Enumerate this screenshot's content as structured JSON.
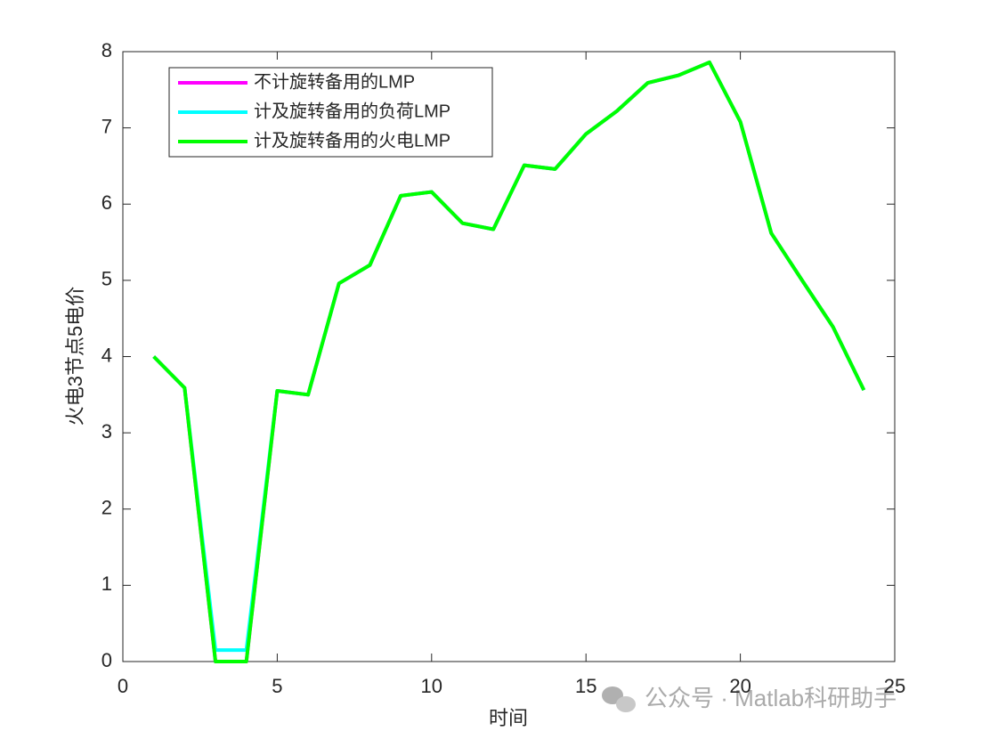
{
  "chart_data": {
    "type": "line",
    "xlabel": "时间",
    "ylabel": "火电3节点5电价",
    "x": [
      1,
      2,
      3,
      4,
      5,
      6,
      7,
      8,
      9,
      10,
      11,
      12,
      13,
      14,
      15,
      16,
      17,
      18,
      19,
      20,
      21,
      22,
      23,
      24
    ],
    "series": [
      {
        "name": "不计旋转备用的LMP",
        "color": "#ff00ff",
        "values": [
          4.0,
          3.59,
          0,
          0,
          3.55,
          3.5,
          4.96,
          5.2,
          6.11,
          6.16,
          5.75,
          5.67,
          6.51,
          6.46,
          6.92,
          7.22,
          7.59,
          7.69,
          7.86,
          7.08,
          5.62,
          5.0,
          4.39,
          3.56
        ]
      },
      {
        "name": "计及旋转备用的负荷LMP",
        "color": "#00ffff",
        "values": [
          4.0,
          3.59,
          0.15,
          0.15,
          3.55,
          3.5,
          4.96,
          5.2,
          6.11,
          6.16,
          5.75,
          5.67,
          6.51,
          6.46,
          6.92,
          7.22,
          7.59,
          7.69,
          7.86,
          7.08,
          5.62,
          5.0,
          4.39,
          3.56
        ]
      },
      {
        "name": "计及旋转备用的火电LMP",
        "color": "#00ff00",
        "values": [
          4.0,
          3.59,
          0,
          0,
          3.55,
          3.5,
          4.96,
          5.2,
          6.11,
          6.16,
          5.75,
          5.67,
          6.51,
          6.46,
          6.92,
          7.22,
          7.59,
          7.69,
          7.86,
          7.08,
          5.62,
          5.0,
          4.39,
          3.56
        ]
      }
    ],
    "xlim": [
      0,
      25
    ],
    "xticks": [
      0,
      5,
      10,
      15,
      20,
      25
    ],
    "ylim": [
      0,
      8
    ],
    "yticks": [
      0,
      1,
      2,
      3,
      4,
      5,
      6,
      7,
      8
    ],
    "grid": false,
    "legend_location": "northwest"
  },
  "watermark": "公众号 · Matlab科研助手"
}
